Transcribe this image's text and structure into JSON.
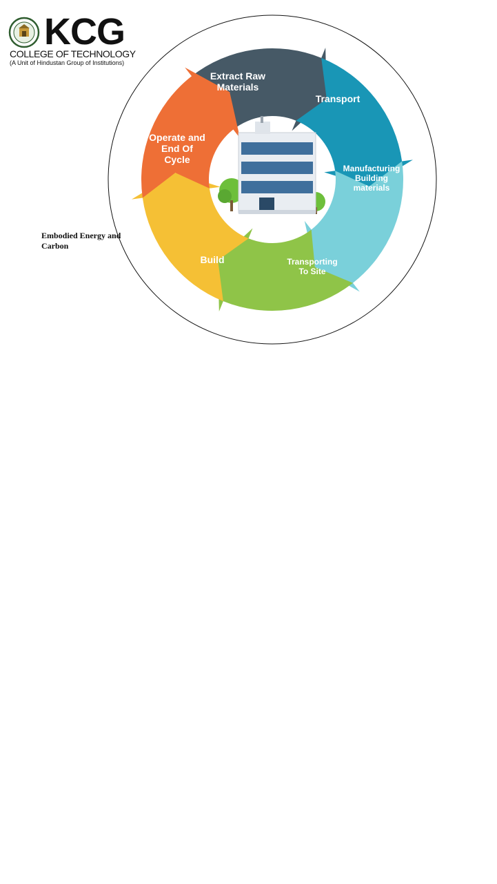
{
  "logo": {
    "name": "KCG",
    "subtitle": "COLLEGE OF TECHNOLOGY",
    "unit_line": "(A Unit of Hindustan Group of Institutions)"
  },
  "side_title": "Embodied Energy and Carbon",
  "stages": [
    {
      "id": "extract",
      "lines": [
        "Extract  Raw",
        "Materials"
      ],
      "color": "#465966"
    },
    {
      "id": "transport",
      "lines": [
        "Transport"
      ],
      "color": "#1996b6"
    },
    {
      "id": "manufacturing",
      "lines": [
        "Manufacturing",
        "Building",
        "materials"
      ],
      "color": "#7ad0da"
    },
    {
      "id": "transporting-to-site",
      "lines": [
        "Transporting",
        "To Site"
      ],
      "color": "#8fc448"
    },
    {
      "id": "build",
      "lines": [
        "Build"
      ],
      "color": "#f5c035"
    },
    {
      "id": "operate",
      "lines": [
        "Operate and",
        "End Of",
        "Cycle"
      ],
      "color": "#ee6f36"
    }
  ],
  "colors": {
    "ring_outline": "#111111",
    "building_glass": "#3f6f9c",
    "building_wall": "#e9edf2",
    "tree": "#6dbf3b"
  }
}
